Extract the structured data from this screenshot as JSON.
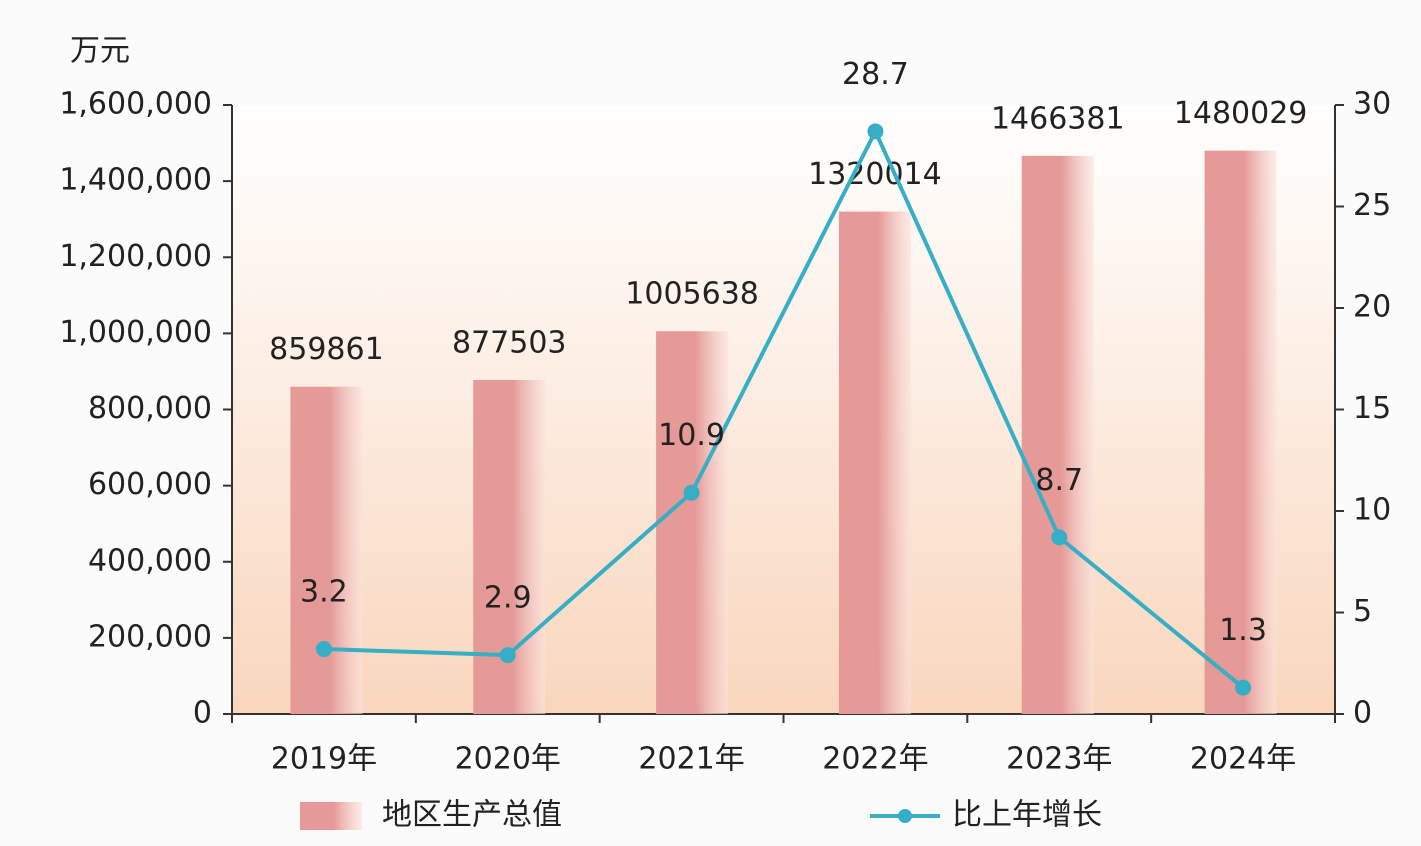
{
  "chart_data": {
    "type": "bar",
    "unit_label": "万元",
    "categories": [
      "2019年",
      "2020年",
      "2021年",
      "2022年",
      "2023年",
      "2024年"
    ],
    "series": [
      {
        "name": "地区生产总值",
        "type": "bar",
        "color": "#e59a98",
        "values": [
          859861,
          877503,
          1005638,
          1320014,
          1466381,
          1480029
        ]
      },
      {
        "name": "比上年增长",
        "type": "line",
        "axis": "y2",
        "color": "#35aec6",
        "values": [
          3.2,
          2.9,
          10.9,
          28.7,
          8.7,
          1.3
        ]
      }
    ],
    "ylim": [
      0,
      1600000
    ],
    "yticks": [
      0,
      {
        "value": 200000,
        "label": "200,000"
      },
      {
        "value": 400000,
        "label": "400,000"
      },
      {
        "value": 600000,
        "label": "600,000"
      },
      {
        "value": 800000,
        "label": "800,000"
      },
      {
        "value": 1000000,
        "label": "1,000,000"
      },
      {
        "value": 1200000,
        "label": "1,200,000"
      },
      {
        "value": 1400000,
        "label": "1,400,000"
      },
      {
        "value": 1600000,
        "label": "1,600,000"
      }
    ],
    "y2lim": [
      0,
      30
    ],
    "y2ticks": [
      0,
      5,
      10,
      15,
      20,
      25,
      30
    ],
    "grid": false
  }
}
